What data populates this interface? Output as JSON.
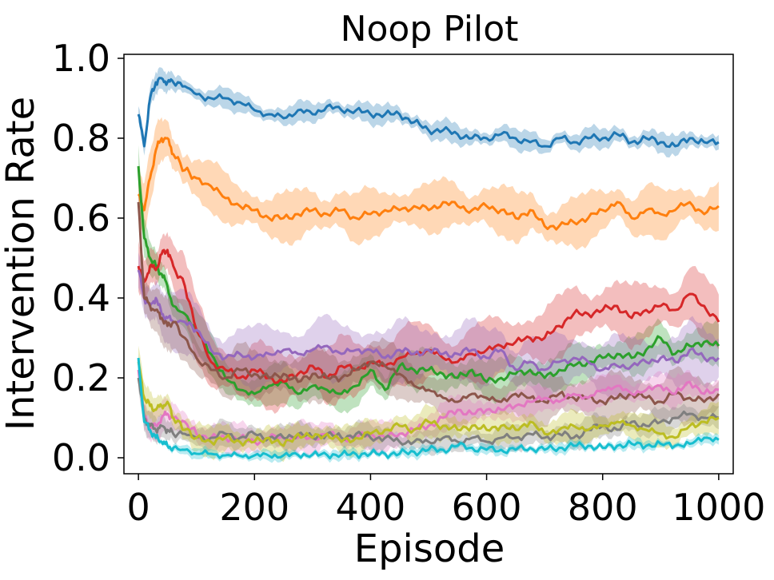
{
  "chart_data": {
    "type": "line",
    "title": "Noop Pilot",
    "xlabel": "Episode",
    "ylabel": "Intervention Rate",
    "xlim": [
      -25,
      1025
    ],
    "ylim": [
      -0.04,
      1.01
    ],
    "xticks": [
      0,
      200,
      400,
      600,
      800,
      1000
    ],
    "yticks": [
      0.0,
      0.2,
      0.4,
      0.6,
      0.8,
      1.0
    ],
    "ytick_labels": [
      "0.0",
      "0.2",
      "0.4",
      "0.6",
      "0.8",
      "1.0"
    ],
    "grid": false,
    "legend": "none",
    "x": [
      0,
      10,
      20,
      30,
      40,
      50,
      60,
      80,
      100,
      125,
      150,
      175,
      200,
      225,
      250,
      275,
      300,
      325,
      350,
      375,
      400,
      425,
      450,
      475,
      500,
      525,
      550,
      575,
      600,
      625,
      650,
      675,
      700,
      725,
      750,
      775,
      800,
      825,
      850,
      875,
      900,
      925,
      950,
      975,
      1000
    ],
    "series": [
      {
        "color": "#1f77b4",
        "band": 0.02,
        "values": [
          0.86,
          0.78,
          0.9,
          0.94,
          0.95,
          0.94,
          0.94,
          0.93,
          0.91,
          0.9,
          0.9,
          0.89,
          0.87,
          0.86,
          0.85,
          0.87,
          0.86,
          0.88,
          0.87,
          0.87,
          0.86,
          0.86,
          0.86,
          0.84,
          0.82,
          0.82,
          0.81,
          0.8,
          0.8,
          0.81,
          0.8,
          0.79,
          0.78,
          0.8,
          0.79,
          0.8,
          0.8,
          0.81,
          0.79,
          0.8,
          0.79,
          0.78,
          0.8,
          0.79,
          0.79
        ]
      },
      {
        "color": "#ff7f0e",
        "band": 0.05,
        "values": [
          0.66,
          0.62,
          0.7,
          0.77,
          0.8,
          0.8,
          0.76,
          0.72,
          0.7,
          0.68,
          0.65,
          0.63,
          0.62,
          0.6,
          0.6,
          0.61,
          0.62,
          0.61,
          0.62,
          0.6,
          0.61,
          0.62,
          0.62,
          0.63,
          0.62,
          0.64,
          0.63,
          0.62,
          0.63,
          0.62,
          0.6,
          0.62,
          0.58,
          0.58,
          0.59,
          0.6,
          0.62,
          0.64,
          0.6,
          0.62,
          0.61,
          0.62,
          0.64,
          0.61,
          0.63
        ]
      },
      {
        "color": "#2ca02c",
        "band": 0.04,
        "values": [
          0.73,
          0.55,
          0.5,
          0.48,
          0.46,
          0.43,
          0.38,
          0.36,
          0.32,
          0.26,
          0.2,
          0.17,
          0.16,
          0.18,
          0.19,
          0.16,
          0.18,
          0.17,
          0.16,
          0.18,
          0.22,
          0.17,
          0.23,
          0.22,
          0.22,
          0.21,
          0.2,
          0.22,
          0.19,
          0.2,
          0.21,
          0.22,
          0.2,
          0.22,
          0.23,
          0.24,
          0.25,
          0.26,
          0.25,
          0.27,
          0.3,
          0.26,
          0.28,
          0.29,
          0.28
        ]
      },
      {
        "color": "#d62728",
        "band": 0.06,
        "values": [
          0.48,
          0.44,
          0.48,
          0.47,
          0.51,
          0.52,
          0.48,
          0.43,
          0.32,
          0.24,
          0.22,
          0.2,
          0.22,
          0.2,
          0.19,
          0.21,
          0.23,
          0.2,
          0.23,
          0.22,
          0.24,
          0.23,
          0.25,
          0.26,
          0.27,
          0.25,
          0.24,
          0.26,
          0.27,
          0.28,
          0.29,
          0.3,
          0.3,
          0.33,
          0.36,
          0.36,
          0.37,
          0.38,
          0.35,
          0.37,
          0.38,
          0.37,
          0.41,
          0.38,
          0.34
        ]
      },
      {
        "color": "#9467bd",
        "band": 0.06,
        "values": [
          0.47,
          0.4,
          0.38,
          0.4,
          0.36,
          0.35,
          0.34,
          0.34,
          0.32,
          0.27,
          0.25,
          0.26,
          0.25,
          0.26,
          0.27,
          0.26,
          0.27,
          0.28,
          0.26,
          0.27,
          0.27,
          0.25,
          0.27,
          0.26,
          0.27,
          0.26,
          0.26,
          0.27,
          0.25,
          0.27,
          0.22,
          0.24,
          0.22,
          0.24,
          0.25,
          0.24,
          0.22,
          0.23,
          0.23,
          0.24,
          0.25,
          0.24,
          0.27,
          0.25,
          0.25
        ]
      },
      {
        "color": "#8c564b",
        "band": 0.05,
        "values": [
          0.64,
          0.4,
          0.38,
          0.37,
          0.35,
          0.33,
          0.34,
          0.3,
          0.25,
          0.22,
          0.2,
          0.22,
          0.21,
          0.2,
          0.21,
          0.19,
          0.21,
          0.2,
          0.2,
          0.22,
          0.24,
          0.23,
          0.21,
          0.18,
          0.17,
          0.15,
          0.14,
          0.16,
          0.15,
          0.14,
          0.16,
          0.15,
          0.14,
          0.16,
          0.15,
          0.15,
          0.14,
          0.15,
          0.16,
          0.15,
          0.14,
          0.16,
          0.15,
          0.14,
          0.16
        ]
      },
      {
        "color": "#e377c2",
        "band": 0.03,
        "values": [
          0.22,
          0.1,
          0.08,
          0.08,
          0.1,
          0.11,
          0.1,
          0.09,
          0.06,
          0.05,
          0.05,
          0.05,
          0.04,
          0.05,
          0.05,
          0.05,
          0.05,
          0.06,
          0.05,
          0.05,
          0.06,
          0.05,
          0.06,
          0.07,
          0.08,
          0.1,
          0.12,
          0.11,
          0.12,
          0.12,
          0.13,
          0.14,
          0.15,
          0.14,
          0.16,
          0.15,
          0.17,
          0.18,
          0.16,
          0.17,
          0.18,
          0.16,
          0.19,
          0.16,
          0.17
        ]
      },
      {
        "color": "#7f7f7f",
        "band": 0.025,
        "values": [
          0.2,
          0.1,
          0.08,
          0.07,
          0.08,
          0.07,
          0.06,
          0.06,
          0.05,
          0.05,
          0.06,
          0.05,
          0.06,
          0.05,
          0.05,
          0.06,
          0.05,
          0.06,
          0.05,
          0.06,
          0.05,
          0.05,
          0.04,
          0.04,
          0.04,
          0.05,
          0.04,
          0.05,
          0.04,
          0.05,
          0.05,
          0.06,
          0.05,
          0.06,
          0.05,
          0.07,
          0.08,
          0.07,
          0.09,
          0.08,
          0.09,
          0.1,
          0.11,
          0.1,
          0.1
        ]
      },
      {
        "color": "#bcbd22",
        "band": 0.03,
        "values": [
          0.24,
          0.15,
          0.13,
          0.12,
          0.13,
          0.14,
          0.1,
          0.07,
          0.05,
          0.04,
          0.05,
          0.04,
          0.04,
          0.05,
          0.03,
          0.06,
          0.05,
          0.06,
          0.04,
          0.05,
          0.06,
          0.07,
          0.08,
          0.07,
          0.09,
          0.08,
          0.07,
          0.08,
          0.07,
          0.08,
          0.07,
          0.09,
          0.06,
          0.07,
          0.08,
          0.07,
          0.08,
          0.09,
          0.08,
          0.07,
          0.06,
          0.05,
          0.08,
          0.09,
          0.1
        ]
      },
      {
        "color": "#17becf",
        "band": 0.01,
        "values": [
          0.25,
          0.09,
          0.07,
          0.05,
          0.04,
          0.03,
          0.025,
          0.02,
          0.01,
          0.01,
          0.006,
          0.005,
          0.006,
          0.005,
          0.006,
          0.007,
          0.008,
          0.007,
          0.008,
          0.009,
          0.01,
          0.01,
          0.01,
          0.015,
          0.02,
          0.02,
          0.03,
          0.025,
          0.02,
          0.02,
          0.02,
          0.025,
          0.02,
          0.025,
          0.03,
          0.03,
          0.025,
          0.03,
          0.035,
          0.03,
          0.035,
          0.03,
          0.035,
          0.05,
          0.045
        ]
      }
    ]
  }
}
